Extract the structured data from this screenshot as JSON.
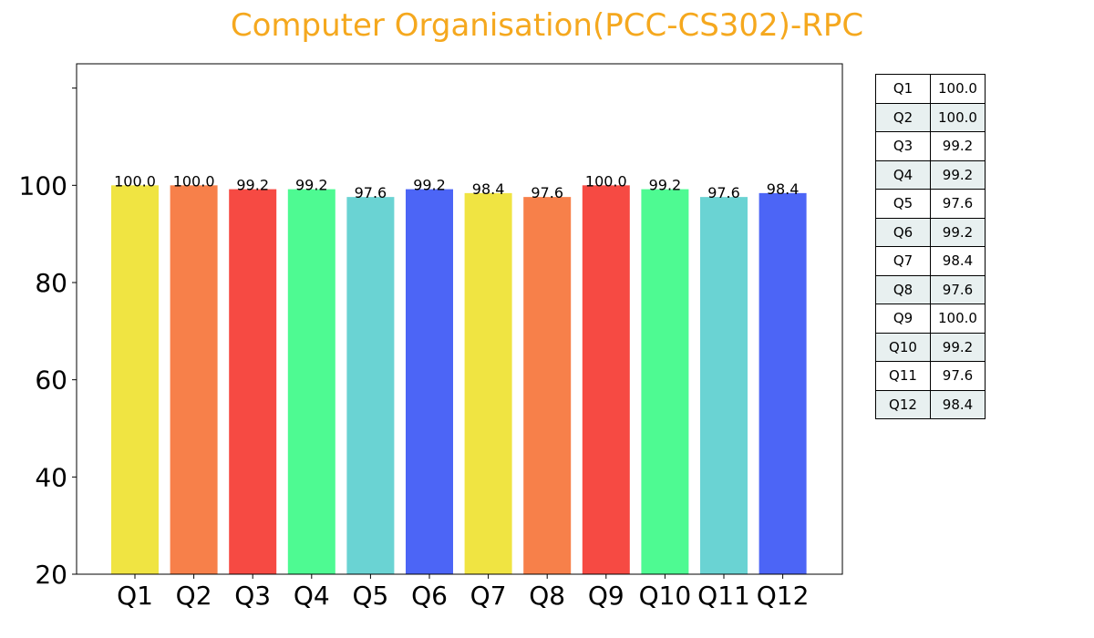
{
  "colors": {
    "title": "#f5a81e",
    "table_alt_row": "#e8f0f0",
    "bars": [
      "#f0e442",
      "#f7804a",
      "#f64a43",
      "#4efa92",
      "#6ad3d3",
      "#4c65f6",
      "#f0e442",
      "#f7804a",
      "#f64a43",
      "#4efa92",
      "#6ad3d3",
      "#4c65f6"
    ]
  },
  "chart_data": {
    "type": "bar",
    "title": "Computer Organisation(PCC-CS302)-RPC",
    "xlabel": "",
    "ylabel": "",
    "categories": [
      "Q1",
      "Q2",
      "Q3",
      "Q4",
      "Q5",
      "Q6",
      "Q7",
      "Q8",
      "Q9",
      "Q10",
      "Q11",
      "Q12"
    ],
    "values": [
      100.0,
      100.0,
      99.2,
      99.2,
      97.6,
      99.2,
      98.4,
      97.6,
      100.0,
      99.2,
      97.6,
      98.4
    ],
    "value_labels": [
      "100.0",
      "100.0",
      "99.2",
      "99.2",
      "97.6",
      "99.2",
      "98.4",
      "97.6",
      "100.0",
      "99.2",
      "97.6",
      "98.4"
    ],
    "ylim": [
      20,
      125
    ],
    "yticks": [
      20,
      40,
      60,
      80,
      100
    ],
    "ytick_labels": [
      "20",
      "40",
      "60",
      "80",
      "100"
    ],
    "grid": false,
    "legend": "none"
  },
  "table": {
    "rows": [
      {
        "q": "Q1",
        "v": "100.0"
      },
      {
        "q": "Q2",
        "v": "100.0"
      },
      {
        "q": "Q3",
        "v": "99.2"
      },
      {
        "q": "Q4",
        "v": "99.2"
      },
      {
        "q": "Q5",
        "v": "97.6"
      },
      {
        "q": "Q6",
        "v": "99.2"
      },
      {
        "q": "Q7",
        "v": "98.4"
      },
      {
        "q": "Q8",
        "v": "97.6"
      },
      {
        "q": "Q9",
        "v": "100.0"
      },
      {
        "q": "Q10",
        "v": "99.2"
      },
      {
        "q": "Q11",
        "v": "97.6"
      },
      {
        "q": "Q12",
        "v": "98.4"
      }
    ]
  }
}
